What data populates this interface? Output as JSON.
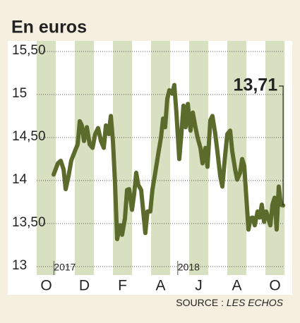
{
  "chart_data": {
    "type": "line",
    "title": "En euros",
    "source": "SOURCE :",
    "source_name": "LES ECHOS",
    "year_labels": [
      {
        "value": 0.9,
        "label": "2017"
      },
      {
        "value": 7.4,
        "label": "2018"
      }
    ],
    "xlim": [
      0,
      13
    ],
    "xticks": [
      {
        "value": 0.5,
        "label": "O"
      },
      {
        "value": 2.5,
        "label": "D"
      },
      {
        "value": 4.5,
        "label": "F"
      },
      {
        "value": 6.5,
        "label": "A"
      },
      {
        "value": 8.5,
        "label": "J"
      },
      {
        "value": 10.5,
        "label": "A"
      },
      {
        "value": 12.5,
        "label": "O"
      }
    ],
    "ylim": [
      13,
      15.5
    ],
    "yticks": [
      {
        "value": 15.5,
        "label": "15,50"
      },
      15,
      {
        "value": 14.5,
        "label": "14,50"
      },
      14,
      {
        "value": 13.5,
        "label": "13,50"
      },
      13
    ],
    "grid": true,
    "series": [
      {
        "color": "#5b6b2c",
        "x": [
          0.89,
          1.11,
          1.26,
          1.41,
          1.52,
          1.67,
          1.81,
          2.0,
          2.15,
          2.26,
          2.37,
          2.48,
          2.63,
          2.78,
          2.93,
          3.07,
          3.22,
          3.37,
          3.52,
          3.63,
          3.78,
          3.89,
          4.0,
          4.11,
          4.22,
          4.37,
          4.48,
          4.63,
          4.74,
          4.85,
          5.0,
          5.11,
          5.22,
          5.33,
          5.48,
          5.59,
          5.7,
          5.81,
          5.96,
          6.07,
          6.22,
          6.37,
          6.52,
          6.63,
          6.74,
          6.85,
          6.96,
          7.11,
          7.22,
          7.33,
          7.48,
          7.59,
          7.7,
          7.81,
          7.93,
          8.07,
          8.19,
          8.33,
          8.44,
          8.59,
          8.7,
          8.85,
          8.96,
          9.11,
          9.22,
          9.37,
          9.48,
          9.63,
          9.74,
          9.89,
          10.0,
          10.15,
          10.26,
          10.41,
          10.52,
          10.67,
          10.78,
          10.89,
          11.0,
          11.11,
          11.22,
          11.33,
          11.44,
          11.59,
          11.7,
          11.81,
          11.93,
          12.04,
          12.15,
          12.26,
          12.37,
          12.48,
          12.59,
          12.7,
          12.81,
          12.93
        ],
        "values": [
          14.07,
          14.2,
          14.23,
          14.13,
          13.9,
          14.05,
          14.23,
          14.34,
          14.42,
          14.69,
          14.64,
          14.46,
          14.62,
          14.42,
          14.38,
          14.54,
          14.61,
          14.46,
          14.38,
          14.64,
          14.54,
          14.75,
          14.46,
          13.97,
          13.32,
          13.48,
          13.37,
          13.56,
          13.89,
          13.9,
          13.66,
          13.84,
          14.09,
          13.95,
          13.89,
          13.64,
          13.39,
          13.64,
          13.64,
          13.89,
          14.09,
          14.3,
          14.5,
          14.72,
          14.62,
          14.95,
          15.05,
          15.01,
          15.11,
          14.79,
          14.25,
          14.54,
          14.87,
          14.62,
          14.89,
          14.58,
          14.79,
          14.62,
          14.5,
          14.38,
          14.2,
          14.38,
          14.16,
          14.7,
          14.75,
          14.54,
          14.34,
          14.05,
          13.93,
          14.3,
          14.54,
          14.58,
          14.34,
          14.13,
          14.01,
          14.09,
          14.25,
          14.17,
          13.8,
          13.43,
          13.56,
          13.57,
          13.48,
          13.64,
          13.57,
          13.72,
          13.52,
          13.64,
          13.56,
          13.48,
          13.72,
          13.8,
          13.43,
          13.93,
          13.72,
          13.71
        ],
        "value_labels": [
          null,
          null,
          null,
          null,
          null,
          null,
          null,
          null,
          null,
          null,
          null,
          null,
          null,
          null,
          null,
          null,
          null,
          null,
          null,
          null,
          null,
          null,
          null,
          null,
          null,
          null,
          null,
          null,
          null,
          null,
          null,
          null,
          null,
          null,
          null,
          null,
          null,
          null,
          null,
          null,
          null,
          null,
          null,
          null,
          null,
          null,
          null,
          null,
          null,
          null,
          null,
          null,
          null,
          null,
          null,
          null,
          null,
          null,
          null,
          null,
          null,
          null,
          null,
          null,
          null,
          null,
          null,
          null,
          null,
          null,
          null,
          null,
          null,
          null,
          null,
          null,
          null,
          null,
          null,
          null,
          null,
          null,
          null,
          null,
          null,
          null,
          null,
          null,
          null,
          null,
          null,
          null,
          null,
          null,
          null,
          "13,71"
        ]
      }
    ]
  }
}
